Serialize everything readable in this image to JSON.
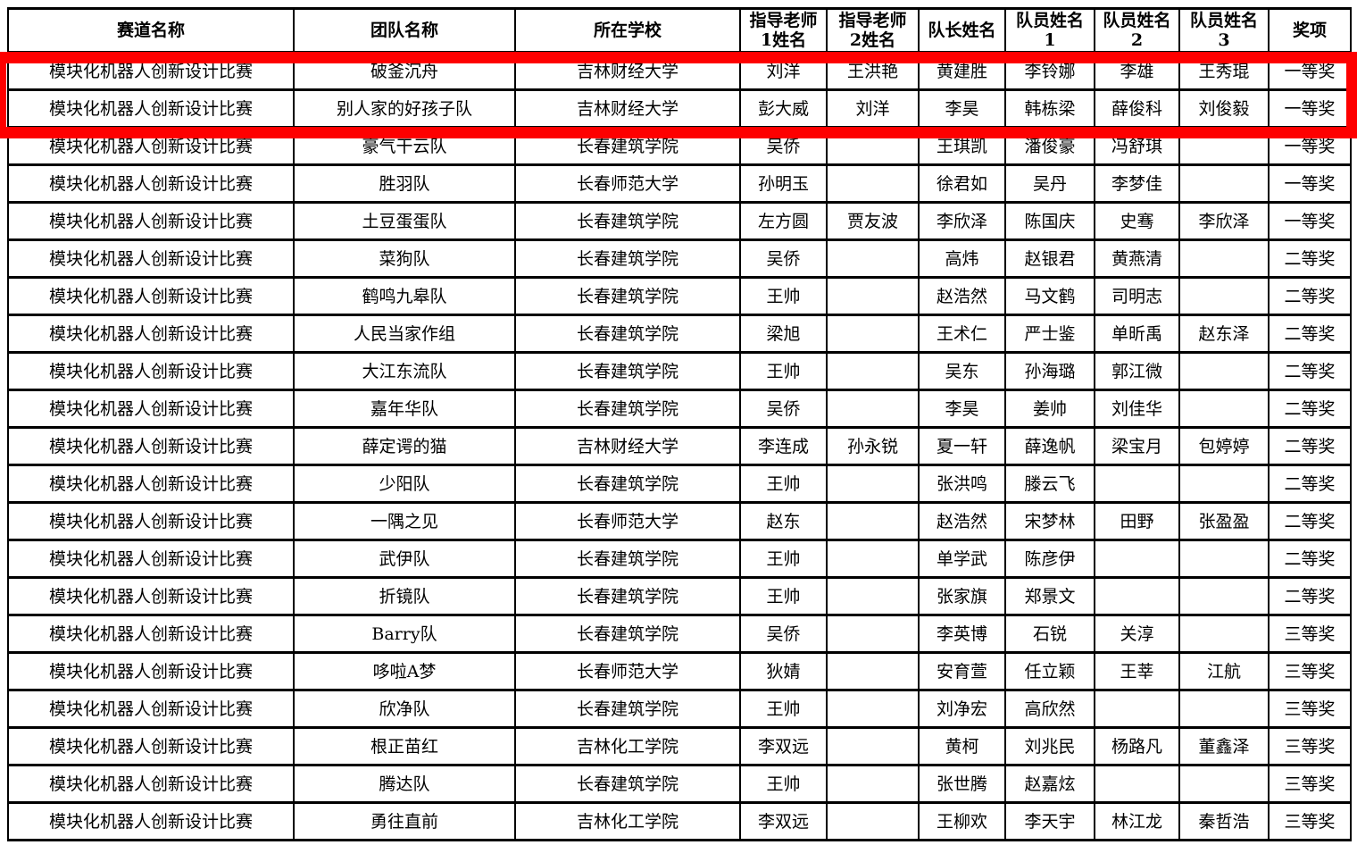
{
  "table": {
    "header": [
      "赛道名称",
      "团队名称",
      "所在学校",
      "指导老师\n1姓名",
      "指导老师\n2姓名",
      "队长姓名",
      "队员姓名\n1",
      "队员姓名\n2",
      "队员姓名\n3",
      "奖项"
    ],
    "rows": [
      [
        "模块化机器人创新设计比赛",
        "破釜沉舟",
        "吉林财经大学",
        "刘洋",
        "王洪艳",
        "黄建胜",
        "李铃娜",
        "李雄",
        "王秀琨",
        "一等奖"
      ],
      [
        "模块化机器人创新设计比赛",
        "别人家的好孩子队",
        "吉林财经大学",
        "彭大威",
        "刘洋",
        "李昊",
        "韩栋梁",
        "薛俊科",
        "刘俊毅",
        "一等奖"
      ],
      [
        "模块化机器人创新设计比赛",
        "豪气干云队",
        "长春建筑学院",
        "吴侨",
        "",
        "王琪凯",
        "潘俊豪",
        "冯舒琪",
        "",
        "一等奖"
      ],
      [
        "模块化机器人创新设计比赛",
        "胜羽队",
        "长春师范大学",
        "孙明玉",
        "",
        "徐君如",
        "吴丹",
        "李梦佳",
        "",
        "一等奖"
      ],
      [
        "模块化机器人创新设计比赛",
        "土豆蛋蛋队",
        "长春建筑学院",
        "左方圆",
        "贾友波",
        "李欣泽",
        "陈国庆",
        "史骞",
        "李欣泽",
        "一等奖"
      ],
      [
        "模块化机器人创新设计比赛",
        "菜狗队",
        "长春建筑学院",
        "吴侨",
        "",
        "高炜",
        "赵银君",
        "黄燕清",
        "",
        "二等奖"
      ],
      [
        "模块化机器人创新设计比赛",
        "鹤鸣九皋队",
        "长春建筑学院",
        "王帅",
        "",
        "赵浩然",
        "马文鹤",
        "司明志",
        "",
        "二等奖"
      ],
      [
        "模块化机器人创新设计比赛",
        "人民当家作组",
        "长春建筑学院",
        "梁旭",
        "",
        "王术仁",
        "严士鉴",
        "单昕禹",
        "赵东泽",
        "二等奖"
      ],
      [
        "模块化机器人创新设计比赛",
        "大江东流队",
        "长春建筑学院",
        "王帅",
        "",
        "吴东",
        "孙海璐",
        "郭江微",
        "",
        "二等奖"
      ],
      [
        "模块化机器人创新设计比赛",
        "嘉年华队",
        "长春建筑学院",
        "吴侨",
        "",
        "李昊",
        "姜帅",
        "刘佳华",
        "",
        "二等奖"
      ],
      [
        "模块化机器人创新设计比赛",
        "薛定谔的猫",
        "吉林财经大学",
        "李连成",
        "孙永锐",
        "夏一轩",
        "薛逸帆",
        "梁宝月",
        "包婷婷",
        "二等奖"
      ],
      [
        "模块化机器人创新设计比赛",
        "少阳队",
        "长春建筑学院",
        "王帅",
        "",
        "张洪鸣",
        "滕云飞",
        "",
        "",
        "二等奖"
      ],
      [
        "模块化机器人创新设计比赛",
        "一隅之见",
        "长春师范大学",
        "赵东",
        "",
        "赵浩然",
        "宋梦林",
        "田野",
        "张盈盈",
        "二等奖"
      ],
      [
        "模块化机器人创新设计比赛",
        "武伊队",
        "长春建筑学院",
        "王帅",
        "",
        "单学武",
        "陈彦伊",
        "",
        "",
        "二等奖"
      ],
      [
        "模块化机器人创新设计比赛",
        "折镜队",
        "长春建筑学院",
        "王帅",
        "",
        "张家旗",
        "郑景文",
        "",
        "",
        "二等奖"
      ],
      [
        "模块化机器人创新设计比赛",
        "Barry队",
        "长春建筑学院",
        "吴侨",
        "",
        "李英博",
        "石锐",
        "关淳",
        "",
        "三等奖"
      ],
      [
        "模块化机器人创新设计比赛",
        "哆啦A梦",
        "长春师范大学",
        "狄婧",
        "",
        "安育萱",
        "任立颖",
        "王莘",
        "江航",
        "三等奖"
      ],
      [
        "模块化机器人创新设计比赛",
        "欣净队",
        "长春建筑学院",
        "王帅",
        "",
        "刘净宏",
        "高欣然",
        "",
        "",
        "三等奖"
      ],
      [
        "模块化机器人创新设计比赛",
        "根正苗红",
        "吉林化工学院",
        "李双远",
        "",
        "黄柯",
        "刘兆民",
        "杨路凡",
        "董鑫泽",
        "三等奖"
      ],
      [
        "模块化机器人创新设计比赛",
        "腾达队",
        "长春建筑学院",
        "王帅",
        "",
        "张世腾",
        "赵嘉炫",
        "",
        "",
        "三等奖"
      ],
      [
        "模块化机器人创新设计比赛",
        "勇往直前",
        "吉林化工学院",
        "李双远",
        "",
        "王柳欢",
        "李天宇",
        "林江龙",
        "秦哲浩",
        "三等奖"
      ]
    ]
  },
  "annotation": {
    "highlight_color": "#fe0000",
    "highlighted_row_indices": [
      0,
      1
    ]
  }
}
